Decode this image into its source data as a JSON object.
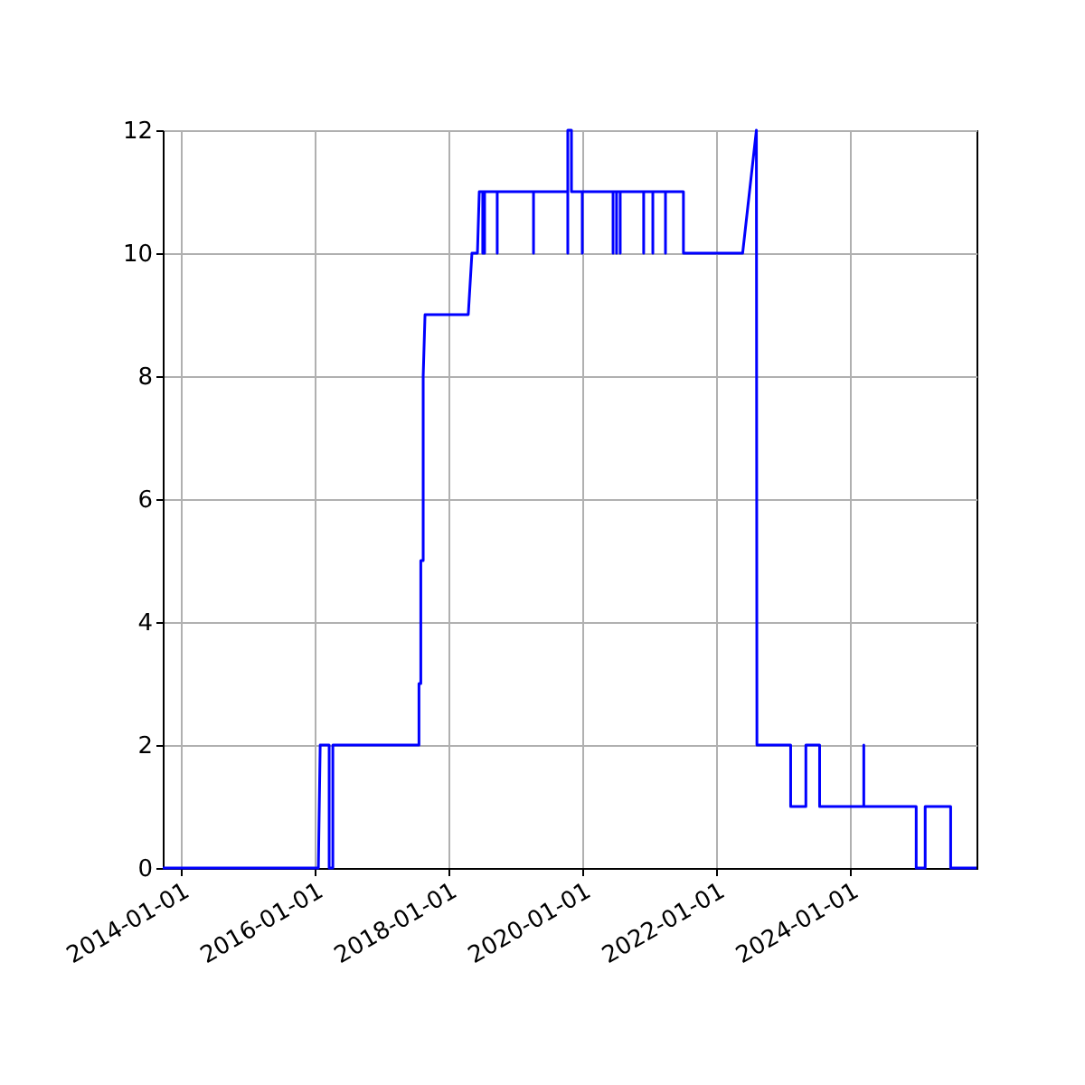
{
  "chart_data": {
    "type": "line",
    "xlim": [
      "2013-09-24",
      "2025-11-20"
    ],
    "ylim": [
      0,
      12
    ],
    "xticks": [
      "2014-01-01",
      "2016-01-01",
      "2018-01-01",
      "2020-01-01",
      "2022-01-01",
      "2024-01-01"
    ],
    "yticks": [
      0,
      2,
      4,
      6,
      8,
      10,
      12
    ],
    "grid": true,
    "marker": "none",
    "line_style": "solid",
    "series": [
      {
        "color": "#0000ff",
        "x": [
          "2013-09-24",
          "2016-01-21",
          "2016-01-31",
          "2016-03-20",
          "2016-03-20",
          "2016-04-09",
          "2016-04-09",
          "2017-07-23",
          "2017-07-23",
          "2017-08-02",
          "2017-08-02",
          "2017-08-15",
          "2017-08-15",
          "2017-08-25",
          "2018-04-18",
          "2018-05-08",
          "2018-06-07",
          "2018-06-17",
          "2018-07-06",
          "2018-07-06",
          "2018-07-06",
          "2018-07-16",
          "2018-07-16",
          "2018-07-16",
          "2018-09-23",
          "2018-09-23",
          "2018-09-23",
          "2019-04-09",
          "2019-04-09",
          "2019-04-09",
          "2019-10-13",
          "2019-10-13",
          "2019-10-13",
          "2019-11-02",
          "2019-11-02",
          "2019-12-31",
          "2019-12-31",
          "2019-12-31",
          "2020-06-16",
          "2020-06-16",
          "2020-06-16",
          "2020-07-05",
          "2020-07-05",
          "2020-07-05",
          "2020-07-25",
          "2020-07-25",
          "2020-07-25",
          "2020-11-30",
          "2020-11-30",
          "2020-11-30",
          "2021-01-19",
          "2021-01-19",
          "2021-01-19",
          "2021-03-29",
          "2021-03-29",
          "2021-03-29",
          "2021-07-05",
          "2021-07-05",
          "2022-05-24",
          "2022-08-07",
          "2022-08-10",
          "2023-02-10",
          "2023-02-10",
          "2023-05-04",
          "2023-05-04",
          "2023-07-18",
          "2023-07-18",
          "2024-03-15",
          "2024-03-15",
          "2024-03-15",
          "2024-12-26",
          "2024-12-26",
          "2025-02-13",
          "2025-02-13",
          "2025-07-02",
          "2025-07-02",
          "2025-11-20"
        ],
        "values": [
          0,
          0,
          2,
          2,
          0,
          0,
          2,
          2,
          3,
          3,
          5,
          5,
          8,
          9,
          9,
          10,
          10,
          11,
          11,
          10,
          11,
          11,
          10,
          11,
          11,
          10,
          11,
          11,
          10,
          11,
          11,
          10,
          12,
          12,
          11,
          11,
          10,
          11,
          11,
          10,
          11,
          11,
          10,
          11,
          11,
          10,
          11,
          11,
          10,
          11,
          11,
          10,
          11,
          11,
          10,
          11,
          11,
          10,
          10,
          12,
          2,
          2,
          1,
          1,
          2,
          2,
          1,
          1,
          2,
          1,
          1,
          0,
          0,
          1,
          1,
          0,
          0
        ]
      }
    ]
  }
}
